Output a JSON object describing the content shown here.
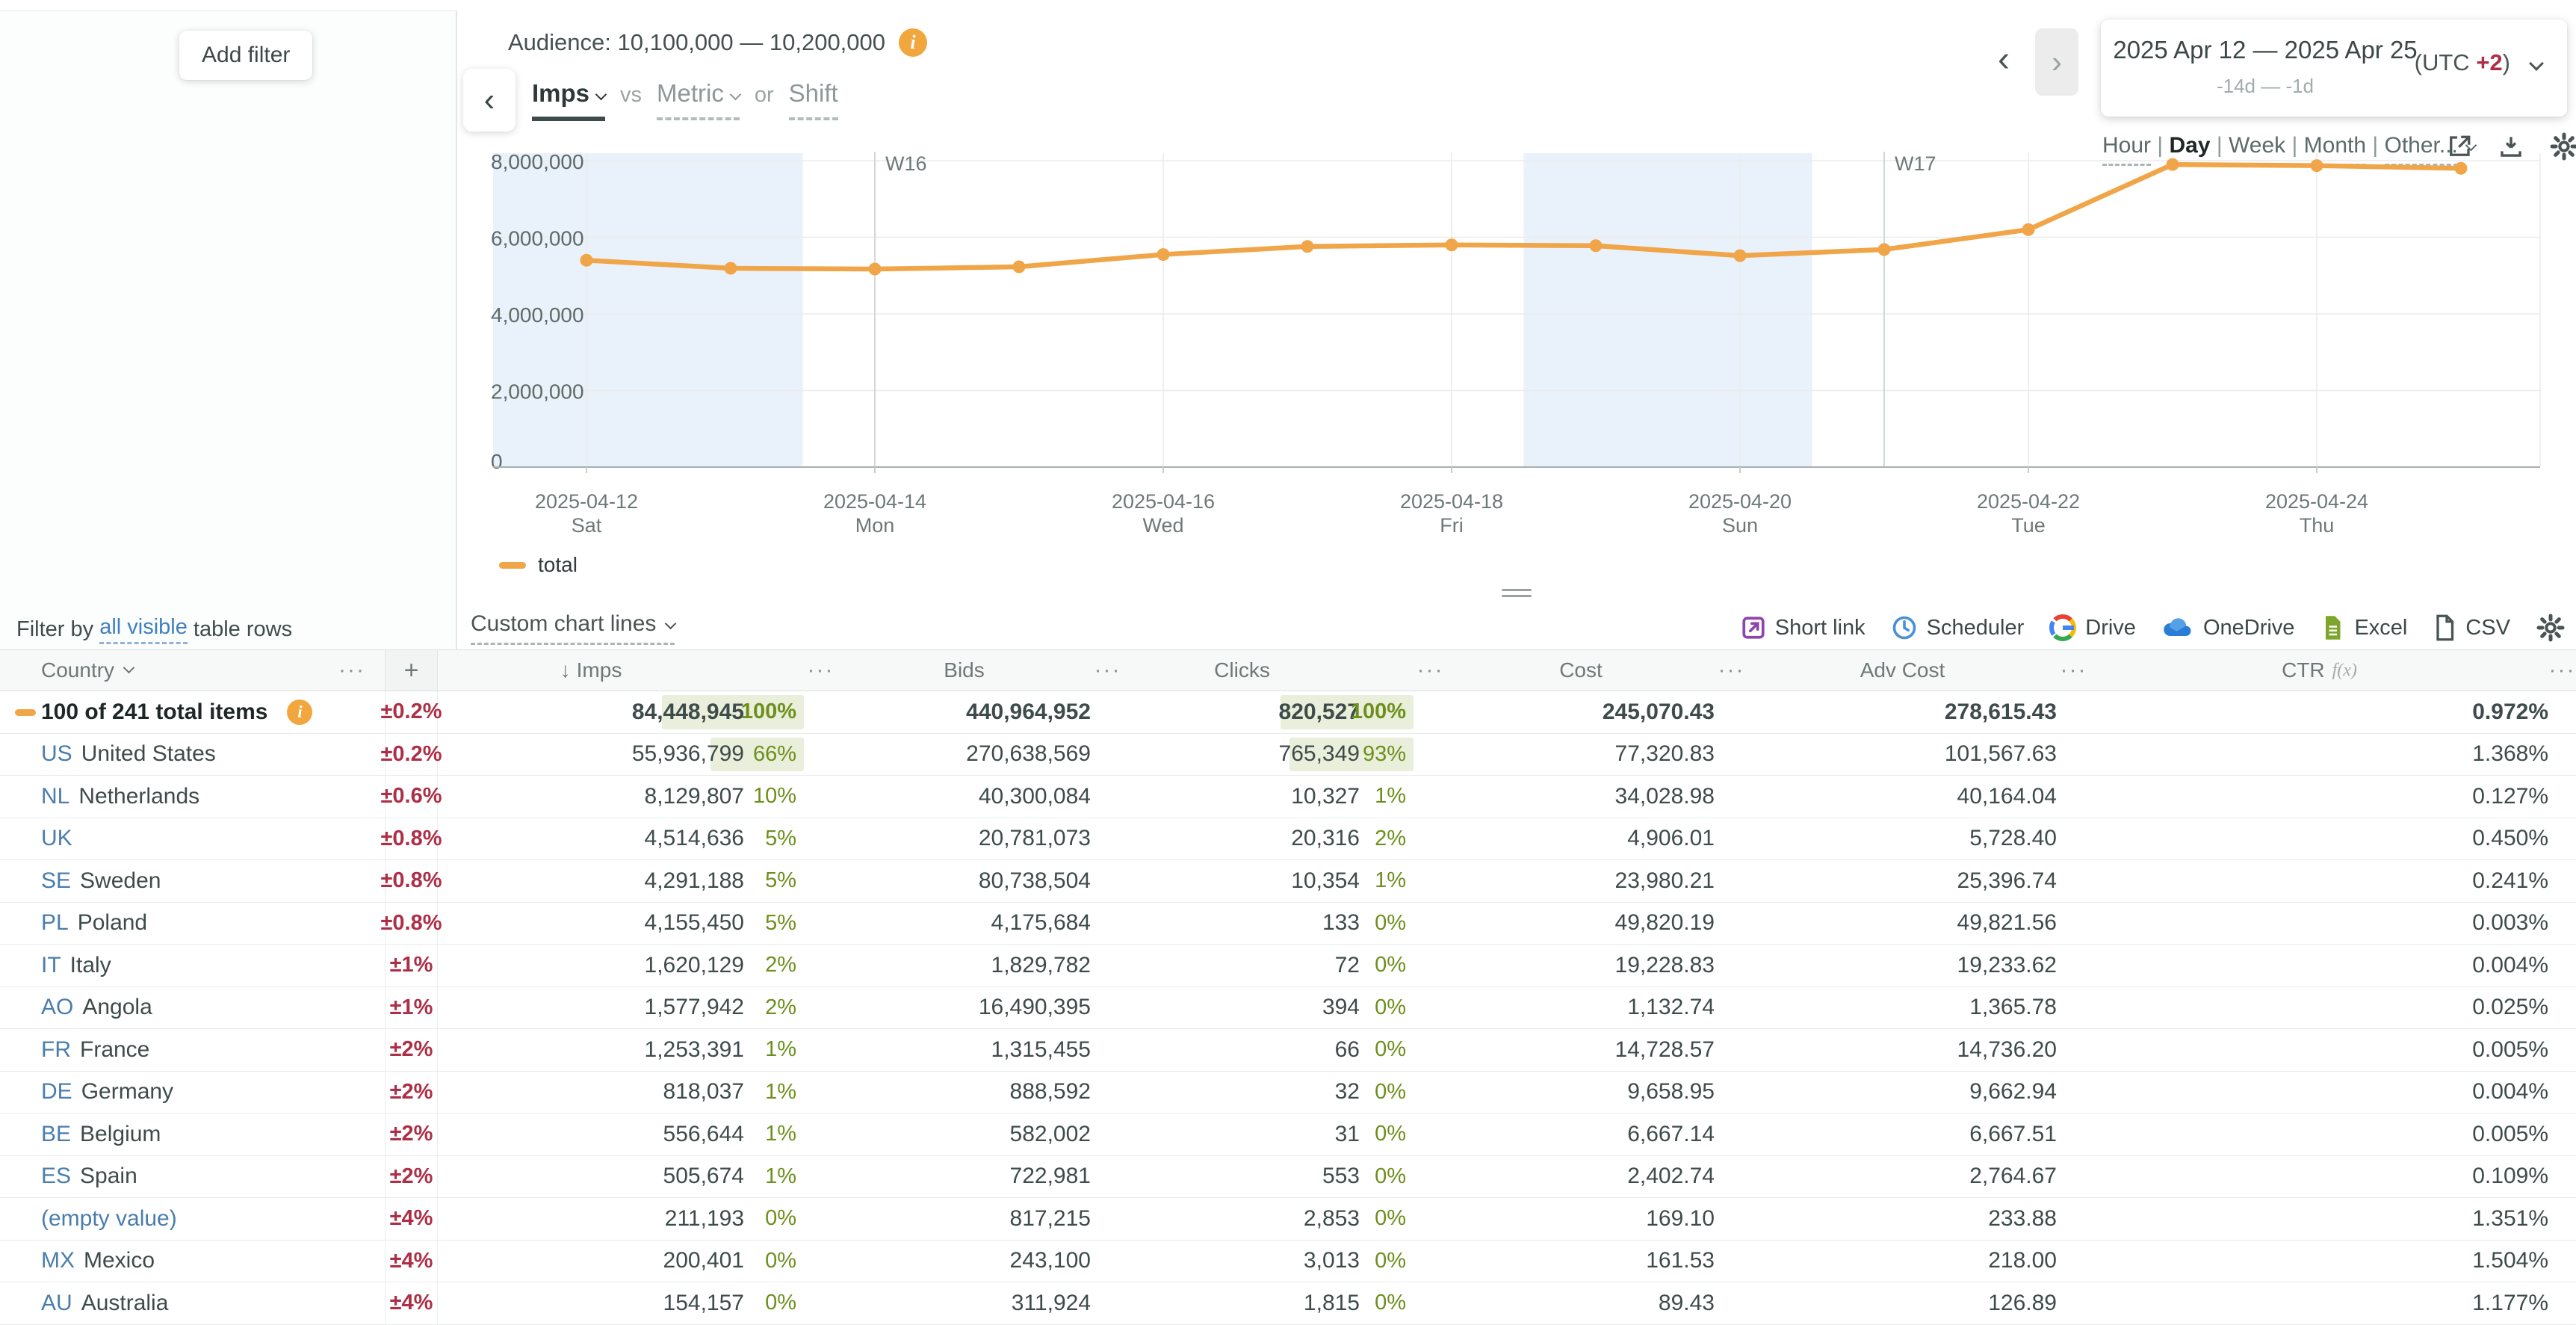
{
  "accent": {
    "orange": "#f0a548",
    "red": "#ad2f47",
    "green": "#6d8f1c",
    "green_bg": "#e9efda",
    "blue_link": "#3f7fc1",
    "code_blue": "#4a7dab",
    "weekend_band": "#e9f1fa"
  },
  "sidebar": {
    "add_filter_label": "Add filter",
    "filter_by": {
      "prefix": "Filter by ",
      "link": "all visible",
      "suffix": " table rows"
    }
  },
  "header": {
    "audience_label": "Audience: 10,100,000 — 10,200,000",
    "info_icon": "i",
    "back_icon": "‹",
    "metric_picker": {
      "primary": "Imps",
      "vs": "vs",
      "secondary": "Metric",
      "or": "or",
      "shift": "Shift"
    },
    "nav": {
      "prev_icon": "‹",
      "next_icon": "›"
    },
    "date_range": {
      "label": "2025 Apr 12 — 2025 Apr 25",
      "relative": "-14d — -1d",
      "utc_prefix": "(UTC ",
      "utc_offset": "+2",
      "utc_suffix": ")"
    },
    "granularity": {
      "options": [
        "Hour",
        "Day",
        "Week",
        "Month",
        "Other..."
      ],
      "selected": "Day"
    }
  },
  "chart_data": {
    "type": "line",
    "title": "",
    "xlabel": "",
    "ylabel": "",
    "x": [
      "2025-04-12",
      "2025-04-13",
      "2025-04-14",
      "2025-04-15",
      "2025-04-16",
      "2025-04-17",
      "2025-04-18",
      "2025-04-19",
      "2025-04-20",
      "2025-04-21",
      "2025-04-22",
      "2025-04-23",
      "2025-04-24",
      "2025-04-25"
    ],
    "series": [
      {
        "name": "total",
        "color": "#f0a548",
        "values": [
          5400000,
          5190000,
          5170000,
          5230000,
          5550000,
          5760000,
          5800000,
          5780000,
          5520000,
          5680000,
          6200000,
          7900000,
          7870000,
          7800000
        ]
      }
    ],
    "ylim": [
      0,
      8000000
    ],
    "y_ticks": [
      0,
      2000000,
      4000000,
      6000000,
      8000000
    ],
    "y_tick_labels": [
      "0",
      "2,000,000",
      "4,000,000",
      "6,000,000",
      "8,000,000"
    ],
    "x_tick_labels": [
      {
        "date": "2025-04-12",
        "dow": "Sat"
      },
      {
        "date": "2025-04-14",
        "dow": "Mon"
      },
      {
        "date": "2025-04-16",
        "dow": "Wed"
      },
      {
        "date": "2025-04-18",
        "dow": "Fri"
      },
      {
        "date": "2025-04-20",
        "dow": "Sun"
      },
      {
        "date": "2025-04-22",
        "dow": "Tue"
      },
      {
        "date": "2025-04-24",
        "dow": "Thu"
      }
    ],
    "week_markers": [
      {
        "label": "W16",
        "x": "2025-04-14"
      },
      {
        "label": "W17",
        "x": "2025-04-21"
      }
    ],
    "weekend_bands": [
      [
        "2025-04-12",
        "2025-04-13"
      ],
      [
        "2025-04-19",
        "2025-04-20"
      ]
    ],
    "grid": true,
    "legend_position": "bottom-left"
  },
  "legend": {
    "label": "total",
    "color": "#f0a548"
  },
  "toolbar": {
    "custom_chart_lines": "Custom chart lines",
    "exports": [
      {
        "icon": "external-link-icon",
        "label": "Short link"
      },
      {
        "icon": "clock-icon",
        "label": "Scheduler"
      },
      {
        "icon": "google-drive-icon",
        "label": "Drive"
      },
      {
        "icon": "onedrive-cloud-icon",
        "label": "OneDrive"
      },
      {
        "icon": "excel-file-icon",
        "label": "Excel"
      },
      {
        "icon": "csv-file-icon",
        "label": "CSV"
      }
    ],
    "gear_icon": "settings"
  },
  "table": {
    "headers": {
      "country": "Country",
      "plus": "+",
      "imps": "Imps",
      "bids": "Bids",
      "clicks": "Clicks",
      "cost": "Cost",
      "adv_cost": "Adv Cost",
      "ctr": "CTR",
      "ctr_fn": "f(x)",
      "menu_icon": "···",
      "sort_icon": "↓"
    },
    "rows": [
      {
        "summary": true,
        "code": "",
        "name": "100 of 241 total items",
        "pm": "±0.2%",
        "imps": "84,448,945",
        "imps_pct": "100%",
        "bids": "440,964,952",
        "clicks": "820,527",
        "clicks_pct": "100%",
        "cost": "245,070.43",
        "adv_cost": "278,615.43",
        "ctr": "0.972%"
      },
      {
        "code": "US",
        "name": "United States",
        "pm": "±0.2%",
        "imps": "55,936,799",
        "imps_pct": "66%",
        "bids": "270,638,569",
        "clicks": "765,349",
        "clicks_pct": "93%",
        "cost": "77,320.83",
        "adv_cost": "101,567.63",
        "ctr": "1.368%"
      },
      {
        "code": "NL",
        "name": "Netherlands",
        "pm": "±0.6%",
        "imps": "8,129,807",
        "imps_pct": "10%",
        "bids": "40,300,084",
        "clicks": "10,327",
        "clicks_pct": "1%",
        "cost": "34,028.98",
        "adv_cost": "40,164.04",
        "ctr": "0.127%"
      },
      {
        "code": "UK",
        "name": "",
        "pm": "±0.8%",
        "imps": "4,514,636",
        "imps_pct": "5%",
        "bids": "20,781,073",
        "clicks": "20,316",
        "clicks_pct": "2%",
        "cost": "4,906.01",
        "adv_cost": "5,728.40",
        "ctr": "0.450%"
      },
      {
        "code": "SE",
        "name": "Sweden",
        "pm": "±0.8%",
        "imps": "4,291,188",
        "imps_pct": "5%",
        "bids": "80,738,504",
        "clicks": "10,354",
        "clicks_pct": "1%",
        "cost": "23,980.21",
        "adv_cost": "25,396.74",
        "ctr": "0.241%"
      },
      {
        "code": "PL",
        "name": "Poland",
        "pm": "±0.8%",
        "imps": "4,155,450",
        "imps_pct": "5%",
        "bids": "4,175,684",
        "clicks": "133",
        "clicks_pct": "0%",
        "cost": "49,820.19",
        "adv_cost": "49,821.56",
        "ctr": "0.003%"
      },
      {
        "code": "IT",
        "name": "Italy",
        "pm": "±1%",
        "imps": "1,620,129",
        "imps_pct": "2%",
        "bids": "1,829,782",
        "clicks": "72",
        "clicks_pct": "0%",
        "cost": "19,228.83",
        "adv_cost": "19,233.62",
        "ctr": "0.004%"
      },
      {
        "code": "AO",
        "name": "Angola",
        "pm": "±1%",
        "imps": "1,577,942",
        "imps_pct": "2%",
        "bids": "16,490,395",
        "clicks": "394",
        "clicks_pct": "0%",
        "cost": "1,132.74",
        "adv_cost": "1,365.78",
        "ctr": "0.025%"
      },
      {
        "code": "FR",
        "name": "France",
        "pm": "±2%",
        "imps": "1,253,391",
        "imps_pct": "1%",
        "bids": "1,315,455",
        "clicks": "66",
        "clicks_pct": "0%",
        "cost": "14,728.57",
        "adv_cost": "14,736.20",
        "ctr": "0.005%"
      },
      {
        "code": "DE",
        "name": "Germany",
        "pm": "±2%",
        "imps": "818,037",
        "imps_pct": "1%",
        "bids": "888,592",
        "clicks": "32",
        "clicks_pct": "0%",
        "cost": "9,658.95",
        "adv_cost": "9,662.94",
        "ctr": "0.004%"
      },
      {
        "code": "BE",
        "name": "Belgium",
        "pm": "±2%",
        "imps": "556,644",
        "imps_pct": "1%",
        "bids": "582,002",
        "clicks": "31",
        "clicks_pct": "0%",
        "cost": "6,667.14",
        "adv_cost": "6,667.51",
        "ctr": "0.005%"
      },
      {
        "code": "ES",
        "name": "Spain",
        "pm": "±2%",
        "imps": "505,674",
        "imps_pct": "1%",
        "bids": "722,981",
        "clicks": "553",
        "clicks_pct": "0%",
        "cost": "2,402.74",
        "adv_cost": "2,764.67",
        "ctr": "0.109%"
      },
      {
        "code": "",
        "name": "(empty value)",
        "pm": "±4%",
        "imps": "211,193",
        "imps_pct": "0%",
        "bids": "817,215",
        "clicks": "2,853",
        "clicks_pct": "0%",
        "cost": "169.10",
        "adv_cost": "233.88",
        "ctr": "1.351%"
      },
      {
        "code": "MX",
        "name": "Mexico",
        "pm": "±4%",
        "imps": "200,401",
        "imps_pct": "0%",
        "bids": "243,100",
        "clicks": "3,013",
        "clicks_pct": "0%",
        "cost": "161.53",
        "adv_cost": "218.00",
        "ctr": "1.504%"
      },
      {
        "code": "AU",
        "name": "Australia",
        "pm": "±4%",
        "imps": "154,157",
        "imps_pct": "0%",
        "bids": "311,924",
        "clicks": "1,815",
        "clicks_pct": "0%",
        "cost": "89.43",
        "adv_cost": "126.89",
        "ctr": "1.177%"
      }
    ]
  }
}
